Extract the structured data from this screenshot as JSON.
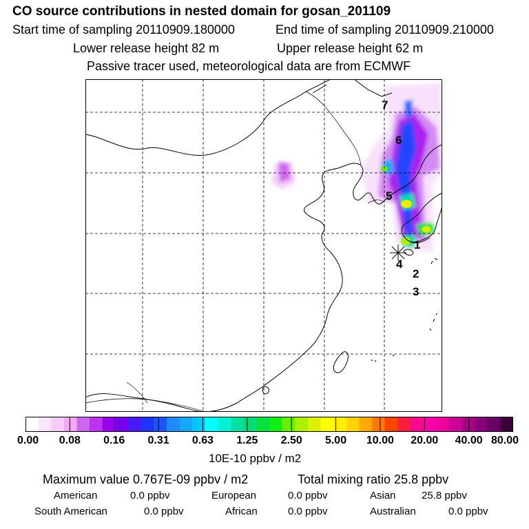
{
  "header": {
    "title": "CO  source contributions in nested domain for gosan_201109",
    "start_time": "Start time of sampling 20110909.180000",
    "end_time": "End time of sampling 20110909.210000",
    "lower_height": "Lower release height   82 m",
    "upper_height": "Upper release height   62 m",
    "tracer_note": "Passive tracer used, meteorological data are from ECMWF"
  },
  "map": {
    "point_labels": [
      "7",
      "6",
      "5",
      "1",
      "4",
      "2",
      "3"
    ],
    "receptor_marker": "asterisk-icon"
  },
  "colorbar": {
    "ticks": [
      "0.00",
      "0.08",
      "0.16",
      "0.31",
      "0.63",
      "1.25",
      "2.50",
      "5.00",
      "10.00",
      "20.00",
      "40.00",
      "80.00"
    ],
    "colors": [
      "#ffffff",
      "#fae6fc",
      "#f4ccf8",
      "#eeaaf4",
      "#cc66f0",
      "#bb33ee",
      "#9900ee",
      "#7700ee",
      "#4a1aff",
      "#2233ff",
      "#1a55ff",
      "#1f8bff",
      "#14a8ff",
      "#00c8ff",
      "#00ffff",
      "#00f0d8",
      "#00e0a0",
      "#00dd77",
      "#00e040",
      "#11ee11",
      "#66f000",
      "#aaf000",
      "#ddf000",
      "#ffff00",
      "#ffee00",
      "#ffd400",
      "#ffaa00",
      "#ff7700",
      "#ff4400",
      "#ff1e3c",
      "#ff0a8c",
      "#ff00aa",
      "#ee0099",
      "#cc0099",
      "#aa0088",
      "#880077",
      "#660066",
      "#3a003a"
    ],
    "units": "10E-10 ppbv / m2"
  },
  "summary": {
    "max_value": "Maximum value  0.767E-09 ppbv / m2",
    "total_mixing": "Total mixing ratio       25.8 ppbv",
    "regions": [
      {
        "name": "American",
        "value": "0.0 ppbv"
      },
      {
        "name": "European",
        "value": "0.0 ppbv"
      },
      {
        "name": "Asian",
        "value": "25.8 ppbv"
      },
      {
        "name": "South American",
        "value": "0.0 ppbv"
      },
      {
        "name": "African",
        "value": "0.0 ppbv"
      },
      {
        "name": "Australian",
        "value": "0.0 ppbv"
      }
    ]
  }
}
